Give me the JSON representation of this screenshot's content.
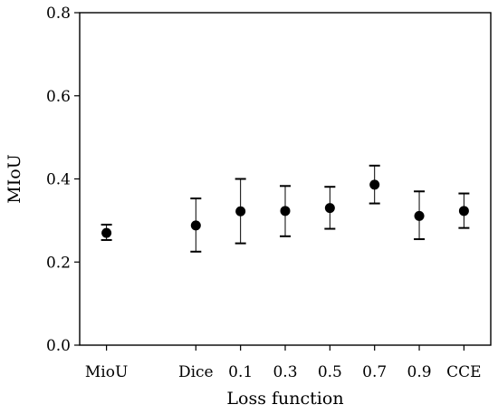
{
  "chart_data": {
    "type": "scatter",
    "xlabel": "Loss function",
    "ylabel": "MIoU",
    "ylim": [
      0.0,
      0.8
    ],
    "yticks": [
      0.0,
      0.2,
      0.4,
      0.6,
      0.8
    ],
    "ytick_labels": [
      "0.0",
      "0.2",
      "0.4",
      "0.6",
      "0.8"
    ],
    "grid": false,
    "categories": [
      "MioU",
      "Dice",
      "0.1",
      "0.3",
      "0.5",
      "0.7",
      "0.9",
      "CCE"
    ],
    "x": [
      0,
      2,
      3,
      4,
      5,
      6,
      7,
      8
    ],
    "values": [
      0.27,
      0.288,
      0.322,
      0.323,
      0.33,
      0.386,
      0.311,
      0.323
    ],
    "err_low": [
      0.253,
      0.225,
      0.245,
      0.262,
      0.28,
      0.341,
      0.255,
      0.282
    ],
    "err_high": [
      0.29,
      0.353,
      0.4,
      0.383,
      0.381,
      0.432,
      0.37,
      0.365
    ],
    "marker_color": "#000000"
  }
}
